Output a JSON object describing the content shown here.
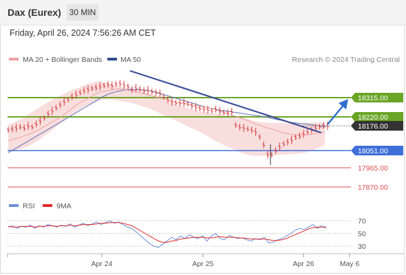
{
  "header": {
    "title": "Dax (Eurex)",
    "timeframe": "30 MIN",
    "datetime": "Friday, April 26, 2024 7:56:26 AM CET"
  },
  "legend": {
    "bollinger_label": "MA 20 + Bollinger Bands",
    "ma50_label": "MA 50",
    "credit": "Research © 2024 Trading Central",
    "rsi_label": "RSI",
    "rsi_ma_label": "9MA"
  },
  "colors": {
    "price": "#d63a3a",
    "bollinger_fill": "#f8d6d6",
    "ma20": "#f0a0a0",
    "ma50": "#5c6fb5",
    "trendline": "#3d4e99",
    "resistance": "#6aa526",
    "support_blue": "#3f6fd8",
    "support_red": "#e24b4b",
    "arrow": "#2f6fd0",
    "rsi": "#6a8edb",
    "rsi_ma": "#e02828"
  },
  "chart_data": {
    "type": "line",
    "ylim": [
      17810,
      18430
    ],
    "price_levels": [
      {
        "value": 18315.0,
        "label": "18315.00",
        "kind": "resistance"
      },
      {
        "value": 18220.0,
        "label": "18220.00",
        "kind": "resistance"
      },
      {
        "value": 18176.0,
        "label": "18176.00",
        "kind": "last_price"
      },
      {
        "value": 18051.0,
        "label": "18051.00",
        "kind": "support_blue"
      },
      {
        "value": 17965.0,
        "label": "17965.00",
        "kind": "support_red"
      },
      {
        "value": 17870.0,
        "label": "17870.00",
        "kind": "support_red"
      }
    ],
    "x_ticks": [
      "Apr 24",
      "Apr 25",
      "Apr 26",
      "May 6"
    ],
    "price_series": [
      18155,
      18160,
      18165,
      18170,
      18165,
      18175,
      18170,
      18185,
      18200,
      18215,
      18235,
      18250,
      18265,
      18280,
      18295,
      18305,
      18320,
      18330,
      18340,
      18350,
      18356,
      18360,
      18365,
      18370,
      18375,
      18380,
      18375,
      18382,
      18385,
      18378,
      18370,
      18355,
      18362,
      18358,
      18350,
      18352,
      18345,
      18340,
      18335,
      18320,
      18305,
      18295,
      18290,
      18288,
      18290,
      18285,
      18275,
      18268,
      18262,
      18258,
      18255,
      18250,
      18258,
      18248,
      18242,
      18240,
      18245,
      18180,
      18170,
      18165,
      18160,
      18155,
      18145,
      18120,
      18080,
      18030,
      18030,
      18050,
      18070,
      18085,
      18095,
      18105,
      18118,
      18125,
      18135,
      18145,
      18155,
      18165,
      18172,
      18178,
      18176
    ],
    "ma20_series": [
      18100,
      18110,
      18115,
      18125,
      18135,
      18145,
      18160,
      18175,
      18190,
      18205,
      18220,
      18240,
      18260,
      18280,
      18295,
      18310,
      18325,
      18338,
      18345,
      18350,
      18355,
      18358,
      18355,
      18350,
      18345,
      18338,
      18332,
      18325,
      18318,
      18312,
      18305,
      18298,
      18292,
      18286,
      18282,
      18278,
      18275,
      18270,
      18264,
      18258,
      18250,
      18240,
      18232,
      18224,
      18215,
      18205,
      18195,
      18184,
      18175,
      18166,
      18160,
      18150,
      18142,
      18136,
      18132,
      18130,
      18130,
      18132,
      18135,
      18140,
      18145
    ],
    "bollinger_upper": [
      18180,
      18195,
      18210,
      18230,
      18250,
      18270,
      18290,
      18310,
      18325,
      18340,
      18355,
      18365,
      18380,
      18390,
      18395,
      18390,
      18380,
      18370,
      18365,
      18360,
      18355,
      18345,
      18335,
      18325,
      18310,
      18295,
      18280,
      18270,
      18262,
      18250,
      18245,
      18240,
      18238,
      18232,
      18228,
      18220,
      18218,
      18210,
      18200,
      18195,
      18192,
      18190,
      18190,
      18188,
      18186,
      18188,
      18190,
      18192,
      18192,
      18190
    ],
    "bollinger_lower": [
      18050,
      18055,
      18060,
      18070,
      18090,
      18110,
      18135,
      18160,
      18185,
      18210,
      18235,
      18255,
      18275,
      18290,
      18300,
      18305,
      18305,
      18300,
      18295,
      18290,
      18280,
      18270,
      18258,
      18245,
      18230,
      18215,
      18200,
      18185,
      18170,
      18155,
      18140,
      18120,
      18100,
      18085,
      18070,
      18055,
      18040,
      18030,
      18025,
      18025,
      18025,
      18028,
      18030,
      18032,
      18034,
      18036,
      18040,
      18050,
      18065,
      18080
    ],
    "ma50_series": [
      18040,
      18060,
      18080,
      18100,
      18120,
      18140,
      18160,
      18180,
      18200,
      18220,
      18240,
      18260,
      18280,
      18300,
      18320,
      18335,
      18345,
      18352,
      18355,
      18355,
      18352,
      18348,
      18340,
      18330,
      18320,
      18310,
      18300,
      18290,
      18280,
      18270,
      18262,
      18255,
      18250,
      18245,
      18240,
      18235,
      18230,
      18225,
      18220,
      18212,
      18205,
      18198,
      18192,
      18188,
      18185,
      18180,
      18175,
      18170
    ],
    "trendline": [
      [
        0,
        18390
      ],
      [
        1,
        18176
      ]
    ],
    "projection_arrow": [
      18176,
      18315
    ],
    "rsi": {
      "ticks": [
        70,
        50,
        30
      ],
      "ylim": [
        15,
        85
      ],
      "rsi_series": [
        60,
        62,
        58,
        61,
        60,
        63,
        58,
        62,
        60,
        64,
        62,
        60,
        63,
        61,
        65,
        60,
        63,
        66,
        62,
        65,
        68,
        64,
        67,
        70,
        66,
        68,
        64,
        60,
        58,
        52,
        46,
        40,
        34,
        30,
        28,
        33,
        38,
        44,
        40,
        46,
        42,
        48,
        44,
        42,
        46,
        38,
        46,
        50,
        42,
        40,
        47,
        44,
        42,
        43,
        40,
        38,
        42,
        40,
        44,
        35,
        36,
        40,
        42,
        46,
        50,
        55,
        58,
        56,
        60,
        64,
        58,
        62,
        60
      ],
      "ma_series": [
        61,
        60,
        60,
        61,
        61,
        61,
        60,
        61,
        61,
        62,
        62,
        61,
        62,
        62,
        63,
        62,
        63,
        64,
        64,
        64,
        65,
        66,
        66,
        67,
        67,
        67,
        66,
        64,
        62,
        58,
        54,
        50,
        46,
        42,
        38,
        36,
        36,
        38,
        39,
        41,
        42,
        43,
        44,
        44,
        44,
        43,
        43,
        44,
        45,
        44,
        44,
        44,
        43,
        43,
        42,
        41,
        41,
        41,
        41,
        40,
        39,
        39,
        40,
        42,
        45,
        48,
        51,
        54,
        57,
        59,
        60,
        60,
        59
      ]
    }
  }
}
